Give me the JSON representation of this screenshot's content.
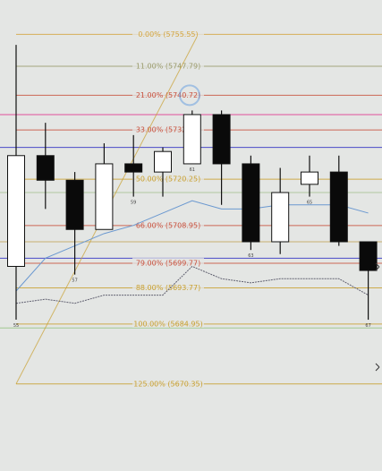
{
  "chart_data": {
    "type": "candlestick",
    "title": "",
    "xlabel": "",
    "ylabel": "",
    "ylim": [
      5650.0,
      5760.0
    ],
    "grid": false,
    "fib_levels": [
      {
        "label": "0.00% (5755.55)",
        "price": 5755.55,
        "color": "#d4a640"
      },
      {
        "label": "11.00% (5747.79)",
        "price": 5747.79,
        "color": "#9a9a6a"
      },
      {
        "label": "21.00% (5740.72)",
        "price": 5740.72,
        "color": "#c8503c"
      },
      {
        "label": "33.00% (5732.25)",
        "price": 5732.25,
        "color": "#c8503c"
      },
      {
        "label": "50.00% (5720.25)",
        "price": 5720.25,
        "color": "#c9a030"
      },
      {
        "label": "66.00% (5708.95)",
        "price": 5708.95,
        "color": "#c8503c"
      },
      {
        "label": "79.00% (5699.77)",
        "price": 5699.77,
        "color": "#c8503c"
      },
      {
        "label": "88.00% (5693.77)",
        "price": 5693.77,
        "color": "#c9a030"
      },
      {
        "label": "100.00% (5684.95)",
        "price": 5684.95,
        "color": "#c9a030"
      },
      {
        "label": "125.00% (5670.35)",
        "price": 5670.35,
        "color": "#c9a030"
      }
    ],
    "horizontal_lines": [
      {
        "price": 5736.0,
        "color": "#e0509a"
      },
      {
        "price": 5728.0,
        "color": "#4a4ac8"
      },
      {
        "price": 5717.0,
        "color": "#b0c8a0"
      },
      {
        "price": 5705.0,
        "color": "#c8b070"
      },
      {
        "price": 5701.0,
        "color": "#4a4ac8"
      },
      {
        "price": 5684.0,
        "color": "#a0c890"
      }
    ],
    "candles": [
      {
        "open": 5699.0,
        "high": 5753.0,
        "low": 5686.0,
        "close": 5726.0,
        "label": "55"
      },
      {
        "open": 5726.0,
        "high": 5734.0,
        "low": 5713.0,
        "close": 5720.0,
        "label": ""
      },
      {
        "open": 5720.0,
        "high": 5722.0,
        "low": 5697.0,
        "close": 5708.0,
        "label": "57"
      },
      {
        "open": 5708.0,
        "high": 5729.0,
        "low": 5708.0,
        "close": 5724.0,
        "label": ""
      },
      {
        "open": 5724.0,
        "high": 5731.0,
        "low": 5716.0,
        "close": 5722.0,
        "label": "59"
      },
      {
        "open": 5722.0,
        "high": 5728.0,
        "low": 5716.0,
        "close": 5727.0,
        "label": ""
      },
      {
        "open": 5724.0,
        "high": 5737.0,
        "low": 5724.0,
        "close": 5736.0,
        "label": "61"
      },
      {
        "open": 5736.0,
        "high": 5737.0,
        "low": 5714.0,
        "close": 5724.0,
        "label": ""
      },
      {
        "open": 5724.0,
        "high": 5726.0,
        "low": 5703.0,
        "close": 5705.0,
        "label": "63"
      },
      {
        "open": 5705.0,
        "high": 5723.0,
        "low": 5702.0,
        "close": 5717.0,
        "label": ""
      },
      {
        "open": 5719.0,
        "high": 5726.0,
        "low": 5716.0,
        "close": 5722.0,
        "label": "65"
      },
      {
        "open": 5722.0,
        "high": 5726.0,
        "low": 5704.0,
        "close": 5705.0,
        "label": ""
      },
      {
        "open": 5705.0,
        "high": 5705.0,
        "low": 5686.0,
        "close": 5698.0,
        "label": "67"
      }
    ],
    "moving_average_blue": [
      5693,
      5701,
      5704,
      5707,
      5709,
      5712,
      5715,
      5713,
      5713,
      5714,
      5714,
      5714,
      5712
    ],
    "moving_average_gray": [
      5690,
      5691,
      5690,
      5692,
      5692,
      5692,
      5699,
      5696,
      5695,
      5696,
      5696,
      5696,
      5692
    ]
  }
}
